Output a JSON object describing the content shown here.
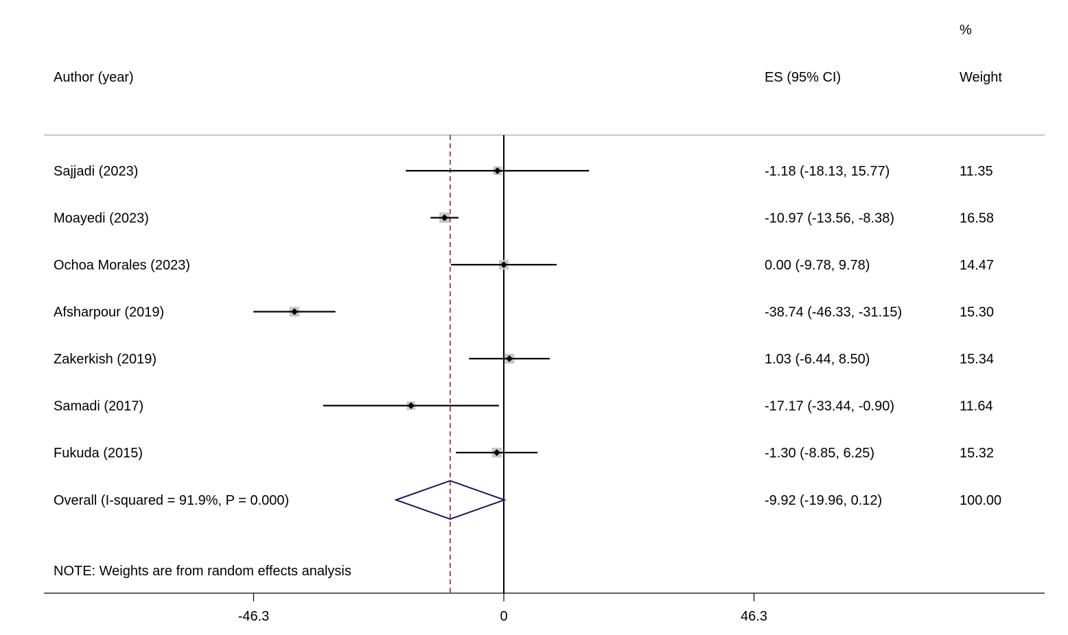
{
  "chart_data": {
    "type": "forest",
    "headers": {
      "study": "Author (year)",
      "es": "ES (95% CI)",
      "weight_top": "%",
      "weight": "Weight"
    },
    "studies": [
      {
        "label": "Sajjadi (2023)",
        "es": -1.18,
        "lo": -18.13,
        "hi": 15.77,
        "es_text": "-1.18 (-18.13, 15.77)",
        "weight": 11.35,
        "weight_text": "11.35"
      },
      {
        "label": "Moayedi (2023)",
        "es": -10.97,
        "lo": -13.56,
        "hi": -8.38,
        "es_text": "-10.97 (-13.56, -8.38)",
        "weight": 16.58,
        "weight_text": "16.58"
      },
      {
        "label": "Ochoa Morales (2023)",
        "es": 0.0,
        "lo": -9.78,
        "hi": 9.78,
        "es_text": "0.00 (-9.78, 9.78)",
        "weight": 14.47,
        "weight_text": "14.47"
      },
      {
        "label": "Afsharpour (2019)",
        "es": -38.74,
        "lo": -46.33,
        "hi": -31.15,
        "es_text": "-38.74 (-46.33, -31.15)",
        "weight": 15.3,
        "weight_text": "15.30"
      },
      {
        "label": "Zakerkish (2019)",
        "es": 1.03,
        "lo": -6.44,
        "hi": 8.5,
        "es_text": "1.03 (-6.44, 8.50)",
        "weight": 15.34,
        "weight_text": "15.34"
      },
      {
        "label": "Samadi (2017)",
        "es": -17.17,
        "lo": -33.44,
        "hi": -0.9,
        "es_text": "-17.17 (-33.44, -0.90)",
        "weight": 11.64,
        "weight_text": "11.64"
      },
      {
        "label": "Fukuda (2015)",
        "es": -1.3,
        "lo": -8.85,
        "hi": 6.25,
        "es_text": "-1.30 (-8.85, 6.25)",
        "weight": 15.32,
        "weight_text": "15.32"
      }
    ],
    "overall": {
      "label": "Overall  (I-squared = 91.9%, P = 0.000)",
      "es": -9.92,
      "lo": -19.96,
      "hi": 0.12,
      "es_text": "-9.92 (-19.96, 0.12)",
      "weight_text": "100.00"
    },
    "note": "NOTE: Weights are from random effects analysis",
    "x_ticks": [
      -46.3,
      0,
      46.3
    ],
    "x_tick_labels": [
      "-46.3",
      "0",
      "46.3"
    ],
    "null_value": 0,
    "colors": {
      "ci_line": "#000000",
      "marker": "#000000",
      "weight_box": "#c8c8c8",
      "overall_diamond": "#1a1a5a",
      "overall_line": "#7a2a3a",
      "rule": "#b4b4b4"
    }
  }
}
